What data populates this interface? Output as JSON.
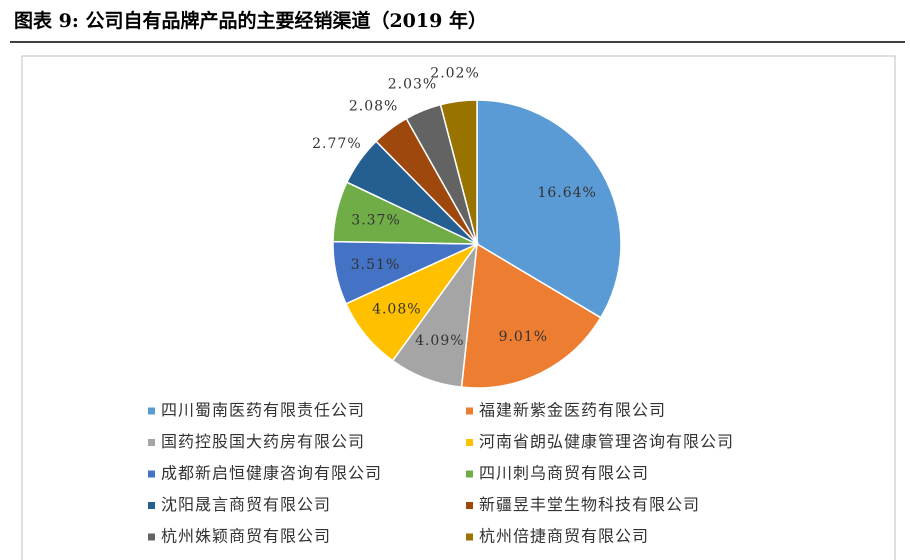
{
  "chart_data": {
    "type": "pie",
    "title": "图表 9:   公司自有品牌产品的主要经销渠道（2019 年）",
    "categories": [
      "四川蜀南医药有限责任公司",
      "福建新紫金医药有限公司",
      "国药控股国大药房有限公司",
      "河南省朗弘健康管理咨询有限公司",
      "成都新启恒健康咨询有限公司",
      "四川刺乌商贸有限公司",
      "沈阳晟言商贸有限公司",
      "新疆昱丰堂生物科技有限公司",
      "杭州姝颖商贸有限公司",
      "杭州倍捷商贸有限公司"
    ],
    "values": [
      16.64,
      9.01,
      4.09,
      4.08,
      3.51,
      3.37,
      2.77,
      2.08,
      2.03,
      2.02
    ],
    "value_labels": [
      "16.64%",
      "9.01%",
      "4.09%",
      "4.08%",
      "3.51%",
      "3.37%",
      "2.77%",
      "2.08%",
      "2.03%",
      "2.02%"
    ],
    "colors": [
      "#5b9bd5",
      "#ed7d31",
      "#a5a5a5",
      "#ffc000",
      "#4472c4",
      "#70ad47",
      "#255e91",
      "#9e480e",
      "#636363",
      "#997300"
    ]
  }
}
